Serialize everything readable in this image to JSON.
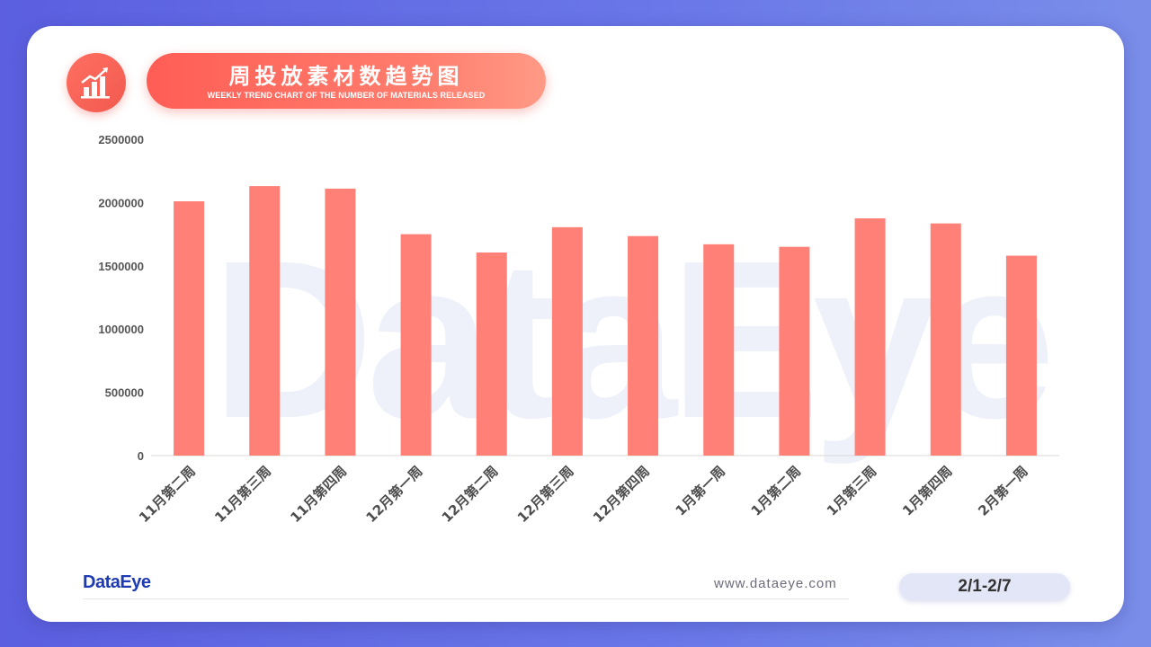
{
  "header": {
    "title": "周投放素材数趋势图",
    "subtitle": "WEEKLY TREND CHART OF THE NUMBER OF MATERIALS RELEASED"
  },
  "watermark": "DataEye",
  "footer": {
    "logo": "DataEye",
    "website": "www.dataeye.com",
    "date_range": "2/1-2/7"
  },
  "colors": {
    "bar": "#ff8077",
    "accent": "#ff5d55",
    "background": "#5b5fe0"
  },
  "icons": {
    "header_icon": "bar-chart-trend-icon"
  },
  "chart_data": {
    "type": "bar",
    "categories": [
      "11月第二周",
      "11月第三周",
      "11月第四周",
      "12月第一周",
      "12月第二周",
      "12月第三周",
      "12月第四周",
      "1月第一周",
      "1月第二周",
      "1月第三周",
      "1月第四周",
      "2月第一周"
    ],
    "values": [
      2010000,
      2130000,
      2110000,
      1750000,
      1605000,
      1805000,
      1735000,
      1670000,
      1650000,
      1875000,
      1835000,
      1580000
    ],
    "yticks": [
      "0",
      "500000",
      "1000000",
      "1500000",
      "2000000",
      "2500000"
    ],
    "ylim": [
      0,
      2500000
    ],
    "grid": false,
    "legend": "none"
  }
}
